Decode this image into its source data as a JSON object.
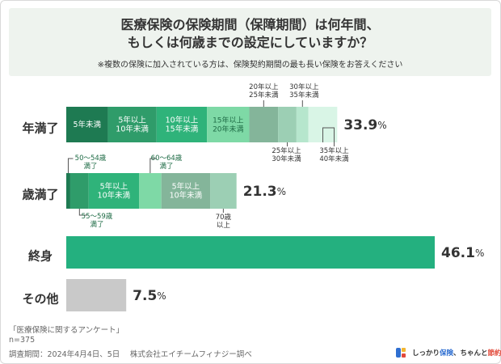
{
  "header": {
    "title_line1": "医療保険の保険期間（保障期間）は何年間、",
    "title_line2": "もしくは何歳までの設定にしていますか？",
    "note": "※複数の保険に加入されている方は、保険契約期間の最も長い保険をお答えください"
  },
  "chart_data": {
    "type": "bar",
    "orientation": "horizontal",
    "stacked": true,
    "unit": "%",
    "categories": [
      "年満了",
      "歳満了",
      "終身",
      "その他"
    ],
    "totals": [
      {
        "category": "年満了",
        "value": 33.9,
        "label": "33.9",
        "unit": "%"
      },
      {
        "category": "歳満了",
        "value": 21.3,
        "label": "21.3",
        "unit": "%"
      },
      {
        "category": "終身",
        "value": 46.1,
        "label": "46.1",
        "unit": "%"
      },
      {
        "category": "その他",
        "value": 7.5,
        "label": "7.5",
        "unit": "%"
      }
    ],
    "stacks": {
      "年満了": [
        {
          "label": "5年未満",
          "value": 5.2,
          "color": "#1e7a52"
        },
        {
          "label": "5年以上\n10年未満",
          "value": 6.1,
          "color": "#2f9c6a"
        },
        {
          "label": "10年以上\n15年未満",
          "value": 6.3,
          "color": "#2fb37a"
        },
        {
          "label": "15年以上\n20年未満",
          "value": 5.3,
          "color": "#7ed9a6"
        },
        {
          "label": "20年以上\n25年未満",
          "value": 3.6,
          "color": "#84b59a"
        },
        {
          "label": "25年以上\n30年未満",
          "value": 2.3,
          "color": "#9ccfb4"
        },
        {
          "label": "30年以上\n35年未満",
          "value": 1.5,
          "color": "#b6e6cd"
        },
        {
          "label": "35年以上\n40年未満",
          "value": 3.6,
          "color": "#d9f5e6"
        }
      ],
      "歳満了": [
        {
          "label": "50～54歳\n満了",
          "value": 0.5,
          "color": "#1e7a52"
        },
        {
          "label": "55～59歳\n満了",
          "value": 2.3,
          "color": "#2f9c6a"
        },
        {
          "label": "5年以上\n10年未満",
          "value": 6.3,
          "color": "#2fb37a"
        },
        {
          "label": "60～64歳\n満了",
          "value": 2.8,
          "color": "#7ed9a6"
        },
        {
          "label": "5年以上\n10年未満",
          "value": 6.1,
          "color": "#84b59a"
        },
        {
          "label": "70歳\n以上",
          "value": 3.3,
          "color": "#9ccfb4"
        }
      ],
      "終身": [
        {
          "label": "",
          "value": 46.1,
          "color": "#24b07f"
        }
      ],
      "その他": [
        {
          "label": "",
          "value": 7.5,
          "color": "#c9c9c9"
        }
      ]
    }
  },
  "footer": {
    "survey": "「医療保険に関するアンケート」",
    "n": "n=375",
    "period": "調査期間：2024年4月4日、5日　 株式会社エイチームフィナジー調べ"
  },
  "brand": {
    "text_a": "しっかり",
    "text_b": "保険",
    "text_c": "、ちゃんと",
    "text_d": "節約",
    "text_e": "。"
  }
}
